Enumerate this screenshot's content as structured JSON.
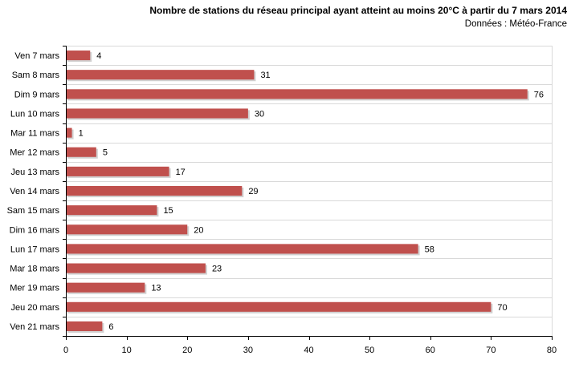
{
  "chart_data": {
    "type": "bar",
    "orientation": "horizontal",
    "title": "Nombre de stations du réseau principal ayant atteint au moins 20°C à partir du 7 mars 2014",
    "subtitle": "Données : Météo-France",
    "categories": [
      "Ven 7 mars",
      "Sam 8 mars",
      "Dim 9 mars",
      "Lun 10 mars",
      "Mar 11 mars",
      "Mer 12 mars",
      "Jeu 13 mars",
      "Ven 14 mars",
      "Sam 15 mars",
      "Dim 16 mars",
      "Lun 17 mars",
      "Mar 18 mars",
      "Mer 19 mars",
      "Jeu 20 mars",
      "Ven 21 mars"
    ],
    "values": [
      4,
      31,
      76,
      30,
      1,
      5,
      17,
      29,
      15,
      20,
      58,
      23,
      13,
      70,
      6
    ],
    "xlim": [
      0,
      80
    ],
    "xticks": [
      0,
      10,
      20,
      30,
      40,
      50,
      60,
      70,
      80
    ],
    "xlabel": "",
    "ylabel": "",
    "grid": true,
    "legend": "none",
    "bar_color": "#c0504d",
    "grid_color": "#d9d9d9",
    "axis_color": "#000000"
  }
}
